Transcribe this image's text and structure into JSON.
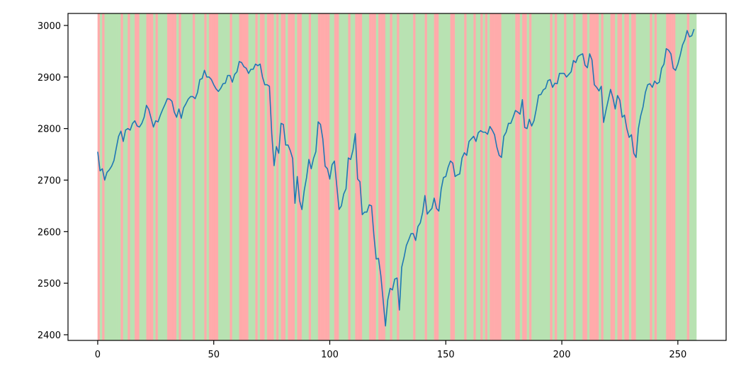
{
  "chart_data": {
    "type": "line",
    "values": [
      2755,
      2718,
      2722,
      2700,
      2715,
      2720,
      2727,
      2738,
      2762,
      2785,
      2795,
      2775,
      2797,
      2800,
      2797,
      2810,
      2815,
      2805,
      2803,
      2810,
      2822,
      2845,
      2837,
      2820,
      2803,
      2815,
      2813,
      2826,
      2837,
      2847,
      2858,
      2857,
      2853,
      2832,
      2822,
      2838,
      2820,
      2840,
      2848,
      2857,
      2862,
      2862,
      2858,
      2870,
      2895,
      2897,
      2913,
      2900,
      2900,
      2895,
      2885,
      2877,
      2872,
      2878,
      2887,
      2888,
      2903,
      2903,
      2890,
      2905,
      2910,
      2930,
      2928,
      2920,
      2917,
      2907,
      2915,
      2915,
      2925,
      2922,
      2925,
      2900,
      2885,
      2885,
      2882,
      2790,
      2728,
      2765,
      2752,
      2810,
      2808,
      2768,
      2768,
      2757,
      2742,
      2655,
      2707,
      2660,
      2643,
      2680,
      2705,
      2740,
      2722,
      2742,
      2755,
      2813,
      2808,
      2780,
      2727,
      2722,
      2702,
      2730,
      2737,
      2690,
      2643,
      2650,
      2673,
      2683,
      2743,
      2740,
      2758,
      2790,
      2702,
      2697,
      2633,
      2638,
      2638,
      2652,
      2650,
      2594,
      2547,
      2548,
      2515,
      2467,
      2417,
      2468,
      2490,
      2487,
      2508,
      2510,
      2448,
      2531,
      2550,
      2573,
      2584,
      2596,
      2596,
      2583,
      2610,
      2617,
      2637,
      2670,
      2634,
      2640,
      2645,
      2665,
      2645,
      2640,
      2682,
      2705,
      2707,
      2725,
      2737,
      2733,
      2707,
      2710,
      2712,
      2743,
      2753,
      2748,
      2775,
      2780,
      2785,
      2775,
      2792,
      2796,
      2793,
      2793,
      2789,
      2804,
      2797,
      2788,
      2764,
      2748,
      2744,
      2785,
      2793,
      2810,
      2810,
      2822,
      2835,
      2832,
      2828,
      2856,
      2802,
      2800,
      2818,
      2805,
      2815,
      2838,
      2865,
      2866,
      2875,
      2878,
      2893,
      2895,
      2880,
      2888,
      2887,
      2907,
      2907,
      2907,
      2900,
      2905,
      2910,
      2932,
      2928,
      2940,
      2943,
      2945,
      2923,
      2918,
      2945,
      2933,
      2885,
      2880,
      2873,
      2882,
      2812,
      2835,
      2855,
      2876,
      2860,
      2838,
      2864,
      2855,
      2822,
      2826,
      2800,
      2783,
      2788,
      2752,
      2744,
      2800,
      2825,
      2842,
      2870,
      2885,
      2887,
      2880,
      2892,
      2887,
      2890,
      2917,
      2925,
      2955,
      2952,
      2945,
      2917,
      2913,
      2925,
      2942,
      2962,
      2972,
      2990,
      2978,
      2980,
      2993
    ],
    "color": "#1f77b4",
    "span_colors": {
      "up": "#b8e2b2",
      "down": "#ffabab"
    },
    "xlim": [
      -12.8,
      270.8
    ],
    "ylim": [
      2389,
      3023.3
    ],
    "xticks": [
      0,
      50,
      100,
      150,
      200,
      250
    ],
    "yticks": [
      2400,
      2500,
      2600,
      2700,
      2800,
      2900,
      3000
    ]
  }
}
